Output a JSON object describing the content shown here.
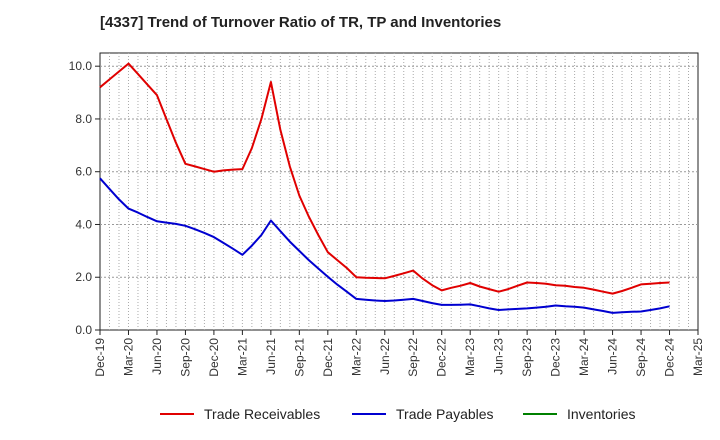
{
  "chart_data": {
    "type": "line",
    "title": "[4337]  Trend of Turnover Ratio of TR, TP and Inventories",
    "xlabel": "",
    "ylabel": "",
    "x_ticks": [
      "Dec-19",
      "Mar-20",
      "Jun-20",
      "Sep-20",
      "Dec-20",
      "Mar-21",
      "Jun-21",
      "Sep-21",
      "Dec-21",
      "Mar-22",
      "Jun-22",
      "Sep-22",
      "Dec-22",
      "Mar-23",
      "Jun-23",
      "Sep-23",
      "Dec-23",
      "Mar-24",
      "Jun-24",
      "Sep-24",
      "Dec-24",
      "Mar-25"
    ],
    "y_ticks": [
      "0.0",
      "2.0",
      "4.0",
      "6.0",
      "8.0",
      "10.0"
    ],
    "ylim": [
      0,
      10.5
    ],
    "grid": true,
    "legend_position": "bottom",
    "series": [
      {
        "name": "Trade Receivables",
        "color": "#e00000",
        "x": [
          "Dec-19",
          "Jan-20",
          "Feb-20",
          "Mar-20",
          "Apr-20",
          "May-20",
          "Jun-20",
          "Jul-20",
          "Aug-20",
          "Sep-20",
          "Oct-20",
          "Nov-20",
          "Dec-20",
          "Jan-21",
          "Feb-21",
          "Mar-21",
          "Apr-21",
          "May-21",
          "Jun-21",
          "Jul-21",
          "Aug-21",
          "Sep-21",
          "Oct-21",
          "Nov-21",
          "Dec-21",
          "Jan-22",
          "Feb-22",
          "Mar-22",
          "Apr-22",
          "May-22",
          "Jun-22",
          "Jul-22",
          "Aug-22",
          "Sep-22",
          "Oct-22",
          "Nov-22",
          "Dec-22",
          "Jan-23",
          "Feb-23",
          "Mar-23",
          "Apr-23",
          "May-23",
          "Jun-23",
          "Jul-23",
          "Aug-23",
          "Sep-23",
          "Oct-23",
          "Nov-23",
          "Dec-23",
          "Jan-24",
          "Feb-24",
          "Mar-24",
          "Apr-24",
          "May-24",
          "Jun-24",
          "Jul-24",
          "Aug-24",
          "Sep-24",
          "Oct-24",
          "Nov-24",
          "Dec-24"
        ],
        "values": [
          9.2,
          9.5,
          9.8,
          10.1,
          9.7,
          9.3,
          8.9,
          8.0,
          7.1,
          6.3,
          6.2,
          6.1,
          6.0,
          6.05,
          6.08,
          6.1,
          6.9,
          8.0,
          9.4,
          7.6,
          6.2,
          5.1,
          4.3,
          3.6,
          2.95,
          2.65,
          2.35,
          2.0,
          1.98,
          1.97,
          1.96,
          2.05,
          2.15,
          2.25,
          1.95,
          1.7,
          1.5,
          1.6,
          1.68,
          1.78,
          1.65,
          1.55,
          1.45,
          1.55,
          1.68,
          1.8,
          1.78,
          1.75,
          1.7,
          1.68,
          1.63,
          1.6,
          1.53,
          1.45,
          1.38,
          1.48,
          1.6,
          1.73,
          1.75,
          1.78,
          1.8
        ]
      },
      {
        "name": "Trade Payables",
        "color": "#0000d0",
        "x": [
          "Dec-19",
          "Jan-20",
          "Feb-20",
          "Mar-20",
          "Apr-20",
          "May-20",
          "Jun-20",
          "Jul-20",
          "Aug-20",
          "Sep-20",
          "Oct-20",
          "Nov-20",
          "Dec-20",
          "Jan-21",
          "Feb-21",
          "Mar-21",
          "Apr-21",
          "May-21",
          "Jun-21",
          "Jul-21",
          "Aug-21",
          "Sep-21",
          "Oct-21",
          "Nov-21",
          "Dec-21",
          "Jan-22",
          "Feb-22",
          "Mar-22",
          "Apr-22",
          "May-22",
          "Jun-22",
          "Jul-22",
          "Aug-22",
          "Sep-22",
          "Oct-22",
          "Nov-22",
          "Dec-22",
          "Jan-23",
          "Feb-23",
          "Mar-23",
          "Apr-23",
          "May-23",
          "Jun-23",
          "Jul-23",
          "Aug-23",
          "Sep-23",
          "Oct-23",
          "Nov-23",
          "Dec-23",
          "Jan-24",
          "Feb-24",
          "Mar-24",
          "Apr-24",
          "May-24",
          "Jun-24",
          "Jul-24",
          "Aug-24",
          "Sep-24",
          "Oct-24",
          "Nov-24",
          "Dec-24"
        ],
        "values": [
          5.75,
          5.35,
          4.95,
          4.6,
          4.45,
          4.28,
          4.12,
          4.07,
          4.02,
          3.95,
          3.82,
          3.68,
          3.52,
          3.3,
          3.08,
          2.85,
          3.2,
          3.6,
          4.15,
          3.75,
          3.35,
          3.0,
          2.65,
          2.33,
          2.02,
          1.72,
          1.45,
          1.18,
          1.15,
          1.12,
          1.1,
          1.12,
          1.15,
          1.18,
          1.1,
          1.02,
          0.95,
          0.95,
          0.96,
          0.97,
          0.9,
          0.82,
          0.76,
          0.78,
          0.8,
          0.82,
          0.85,
          0.88,
          0.93,
          0.9,
          0.88,
          0.85,
          0.78,
          0.72,
          0.65,
          0.67,
          0.69,
          0.7,
          0.76,
          0.82,
          0.9
        ]
      },
      {
        "name": "Inventories",
        "color": "#008000",
        "x": [],
        "values": []
      }
    ]
  }
}
